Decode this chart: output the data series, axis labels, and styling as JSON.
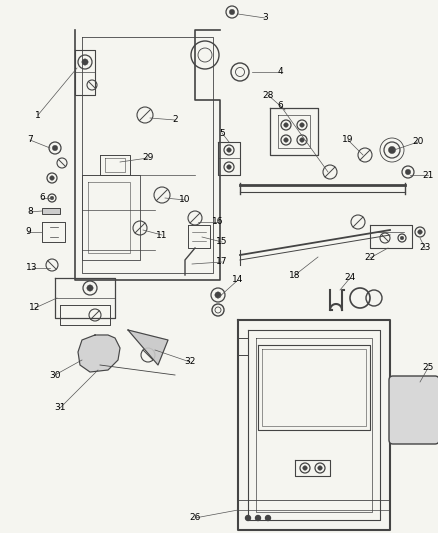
{
  "bg_color": "#f5f5f0",
  "line_color": "#444444",
  "label_color": "#000000",
  "line_width": 0.9,
  "label_fontsize": 6.5
}
